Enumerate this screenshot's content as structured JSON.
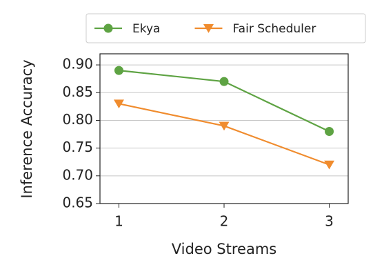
{
  "chart_data": {
    "type": "line",
    "x_label": "Video Streams",
    "y_label": "Inference Accuracy",
    "x": [
      1,
      2,
      3
    ],
    "series": [
      {
        "name": "Ekya",
        "color": "#5ea343",
        "marker": "circle",
        "values": [
          0.89,
          0.87,
          0.78
        ]
      },
      {
        "name": "Fair Scheduler",
        "color": "#f08c2e",
        "marker": "triangle-down",
        "values": [
          0.83,
          0.79,
          0.72
        ]
      }
    ],
    "xlim": [
      0.82,
      3.18
    ],
    "xticks": [
      1,
      2,
      3
    ],
    "ylim": [
      0.65,
      0.92
    ],
    "yticks": [
      0.65,
      {
        "value": 0.7,
        "label": "0.70"
      },
      0.75,
      {
        "value": 0.8,
        "label": "0.80"
      },
      0.85,
      {
        "value": 0.9,
        "label": "0.90"
      }
    ],
    "grid": true,
    "legend": "top"
  }
}
